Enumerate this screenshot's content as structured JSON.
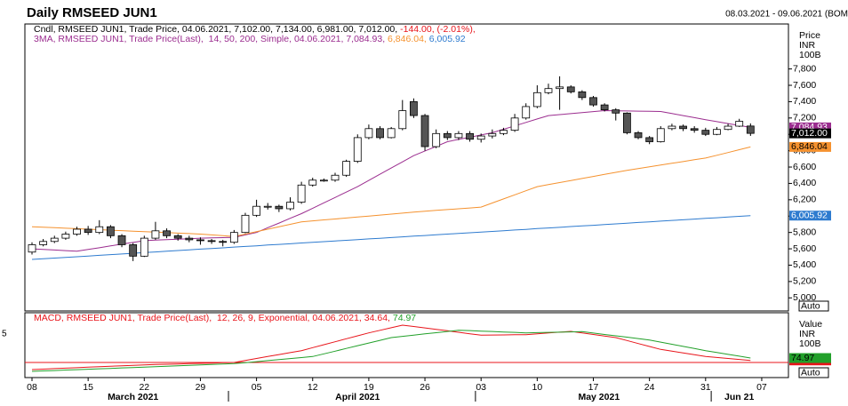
{
  "title": "Daily RMSEED JUN1",
  "date_range": "08.03.2021 - 09.06.2021 (BOM",
  "edge_text": "5",
  "chart_data": [
    {
      "type": "candlestick",
      "legend": [
        [
          {
            "text": "Cndl, RMSEED JUN1, Trade Price, 04.06.2021, 7,102.00, 7,134.00, 6,981.00, 7,012.00, ",
            "color": "#000000"
          },
          {
            "text": "-144.00, (-2.01%),",
            "color": "#e8151b"
          }
        ],
        [
          {
            "text": "3MA, RMSEED JUN1, Trade Price(Last),  14, 50, 200, Simple, 04.06.2021, 7,084.93, ",
            "color": "#9b2d8f"
          },
          {
            "text": "6,846.04, ",
            "color": "#f5922f"
          },
          {
            "text": "6,005.92",
            "color": "#2e7bcf"
          }
        ]
      ],
      "open": [
        5560,
        5650,
        5690,
        5730,
        5780,
        5840,
        5800,
        5870,
        5760,
        5650,
        5510,
        5730,
        5820,
        5760,
        5730,
        5710,
        5700,
        5690,
        5680,
        5800,
        6010,
        6120,
        6120,
        6090,
        6170,
        6380,
        6440,
        6440,
        6500,
        6670,
        6960,
        7070,
        6960,
        7070,
        7400,
        7230,
        6850,
        7010,
        6960,
        7010,
        6940,
        6980,
        7010,
        7050,
        7200,
        7340,
        7510,
        7560,
        7580,
        7520,
        7450,
        7360,
        7300,
        7260,
        7020,
        6960,
        6910,
        7070,
        7100,
        7070,
        7050,
        7000,
        7060,
        7100,
        7102,
        null
      ],
      "high": [
        5680,
        5720,
        5760,
        5810,
        5870,
        5880,
        5950,
        5890,
        5780,
        5670,
        5760,
        5930,
        5850,
        5780,
        5760,
        5740,
        5720,
        5710,
        5830,
        6040,
        6200,
        6160,
        6140,
        6230,
        6420,
        6470,
        6460,
        6530,
        6690,
        7000,
        7120,
        7100,
        7090,
        7420,
        7440,
        7250,
        7060,
        7040,
        7040,
        7040,
        7010,
        7060,
        7080,
        7250,
        7380,
        7600,
        7620,
        7710,
        7600,
        7540,
        7470,
        7380,
        7320,
        7270,
        7040,
        6980,
        7100,
        7130,
        7120,
        7100,
        7080,
        7090,
        7130,
        7190,
        7134,
        null
      ],
      "low": [
        5530,
        5630,
        5670,
        5710,
        5760,
        5770,
        5780,
        5730,
        5620,
        5450,
        5500,
        5710,
        5730,
        5700,
        5680,
        5650,
        5660,
        5630,
        5660,
        5790,
        5990,
        6080,
        6050,
        6070,
        6150,
        6360,
        6420,
        6420,
        6480,
        6650,
        6940,
        6940,
        6950,
        7050,
        7200,
        6800,
        6830,
        6930,
        6930,
        6910,
        6900,
        6950,
        6990,
        7030,
        7180,
        7320,
        7490,
        7300,
        7500,
        7420,
        7340,
        7280,
        7170,
        7000,
        6940,
        6880,
        6900,
        7050,
        7040,
        7020,
        6980,
        6990,
        7050,
        7090,
        6981,
        null
      ],
      "close": [
        5650,
        5690,
        5730,
        5780,
        5840,
        5800,
        5870,
        5760,
        5650,
        5510,
        5730,
        5820,
        5760,
        5730,
        5710,
        5700,
        5690,
        5680,
        5800,
        6010,
        6120,
        6120,
        6090,
        6170,
        6380,
        6440,
        6440,
        6500,
        6670,
        6960,
        7070,
        6960,
        7070,
        7290,
        7230,
        6850,
        7010,
        6960,
        7010,
        6940,
        6980,
        7010,
        7050,
        7200,
        7340,
        7510,
        7560,
        7580,
        7520,
        7450,
        7360,
        7300,
        7260,
        7020,
        6960,
        6910,
        7070,
        7100,
        7070,
        7050,
        7000,
        7060,
        7100,
        7160,
        7012,
        null
      ],
      "close_tag": "7,012.00",
      "up_color": "#ffffff",
      "down_color": "#555555",
      "series": [
        {
          "name": "14",
          "color": "#9b2d8f",
          "tag": "7,084.93",
          "values": [
            5600,
            5592,
            5585,
            5578,
            5570,
            5592,
            5613,
            5635,
            5657,
            5678,
            5700,
            5706,
            5712,
            5718,
            5724,
            5730,
            5733,
            5737,
            5740,
            5770,
            5800,
            5858,
            5915,
            5973,
            6030,
            6096,
            6162,
            6228,
            6294,
            6360,
            6436,
            6512,
            6588,
            6664,
            6740,
            6797,
            6853,
            6910,
            6938,
            6965,
            6993,
            7020,
            7062,
            7104,
            7146,
            7188,
            7230,
            7242,
            7254,
            7266,
            7278,
            7290,
            7288,
            7286,
            7284,
            7282,
            7280,
            7255,
            7230,
            7205,
            7180,
            7156,
            7132,
            7108,
            7084.93,
            null
          ]
        },
        {
          "name": "50",
          "color": "#f5922f",
          "tag": "6,846.04",
          "values": [
            5870,
            5864,
            5858,
            5852,
            5846,
            5840,
            5834,
            5828,
            5822,
            5816,
            5810,
            5804,
            5798,
            5792,
            5786,
            5780,
            5770,
            5760,
            5750,
            5780,
            5810,
            5840,
            5870,
            5900,
            5930,
            5942,
            5954,
            5965,
            5977,
            5989,
            6001,
            6013,
            6025,
            6036,
            6048,
            6060,
            6070,
            6080,
            6090,
            6100,
            6110,
            6160,
            6210,
            6260,
            6310,
            6360,
            6385,
            6410,
            6435,
            6460,
            6485,
            6510,
            6535,
            6560,
            6581,
            6603,
            6624,
            6646,
            6667,
            6689,
            6710,
            6744,
            6778,
            6812,
            6846.04,
            null
          ]
        },
        {
          "name": "200",
          "color": "#2e7bcf",
          "tag": "6,005.92",
          "values": [
            5470,
            5478,
            5487,
            5495,
            5503,
            5512,
            5520,
            5529,
            5537,
            5545,
            5554,
            5562,
            5570,
            5579,
            5587,
            5596,
            5604,
            5612,
            5621,
            5629,
            5637,
            5646,
            5654,
            5662,
            5671,
            5679,
            5688,
            5696,
            5704,
            5713,
            5721,
            5729,
            5738,
            5746,
            5755,
            5763,
            5771,
            5780,
            5788,
            5796,
            5805,
            5813,
            5821,
            5830,
            5838,
            5847,
            5855,
            5863,
            5872,
            5880,
            5888,
            5897,
            5905,
            5914,
            5922,
            5930,
            5939,
            5947,
            5955,
            5964,
            5972,
            5980,
            5989,
            5997,
            6005.92,
            null
          ]
        }
      ],
      "ylim": [
        4840,
        8350
      ],
      "yticks": [
        {
          "value": 5000,
          "label": "5,000"
        },
        {
          "value": 5200,
          "label": "5,200"
        },
        {
          "value": 5400,
          "label": "5,400"
        },
        {
          "value": 5600,
          "label": "5,600"
        },
        {
          "value": 5800,
          "label": "5,800"
        },
        {
          "value": 6000,
          "label": "6,000"
        },
        {
          "value": 6200,
          "label": "6,200"
        },
        {
          "value": 6400,
          "label": "6,400"
        },
        {
          "value": 6600,
          "label": "6,600"
        },
        {
          "value": 6800,
          "label": "6,800"
        },
        {
          "value": 7000,
          "label": "7,000"
        },
        {
          "value": 7200,
          "label": "7,200"
        },
        {
          "value": 7400,
          "label": "7,400"
        },
        {
          "value": 7600,
          "label": "7,600"
        },
        {
          "value": 7800,
          "label": "7,800"
        }
      ],
      "axis_labels": [
        "Price",
        "INR",
        "100B"
      ],
      "scale_button": "Auto"
    },
    {
      "type": "line",
      "legend": [
        [
          {
            "text": "MACD, RMSEED JUN1, Trade Price(Last),  12, 26, 9, Exponential, 04.06.2021, 34.64, ",
            "color": "#e8151b"
          },
          {
            "text": "74.97",
            "color": "#22a02a"
          }
        ]
      ],
      "series": [
        {
          "color": "#e8151b",
          "tag": "34.64",
          "values": [
            -120,
            -112,
            -104,
            -96,
            -88,
            -80,
            -72,
            -64,
            -56,
            -48,
            -40,
            -35,
            -30,
            -25,
            -20,
            -15,
            -10,
            -5,
            0,
            33,
            67,
            100,
            133,
            167,
            200,
            250,
            300,
            350,
            400,
            450,
            500,
            543,
            587,
            630,
            607,
            583,
            560,
            535,
            510,
            485,
            460,
            463,
            465,
            468,
            470,
            484,
            498,
            511,
            525,
            499,
            473,
            446,
            420,
            370,
            320,
            270,
            220,
            190,
            160,
            130,
            100,
            84,
            67,
            51,
            34.64,
            null
          ]
        },
        {
          "color": "#22a02a",
          "tag": "74.97",
          "values": [
            -150,
            -143,
            -136,
            -128,
            -121,
            -114,
            -107,
            -100,
            -92,
            -85,
            -78,
            -71,
            -64,
            -56,
            -49,
            -42,
            -35,
            -27,
            -20,
            -3,
            14,
            31,
            49,
            66,
            83,
            100,
            146,
            191,
            237,
            283,
            329,
            374,
            420,
            441,
            462,
            483,
            503,
            524,
            545,
            538,
            530,
            523,
            515,
            508,
            500,
            504,
            508,
            512,
            516,
            520,
            497,
            473,
            450,
            427,
            403,
            380,
            344,
            308,
            272,
            236,
            200,
            169,
            137,
            106,
            74.97,
            null
          ]
        }
      ],
      "hline": 0,
      "hline_color": "#e8151b",
      "ylim": [
        -255,
        840
      ],
      "axis_labels": [
        "Value",
        "INR",
        "100B"
      ],
      "scale_button": "Auto",
      "categories": [
        "08",
        null,
        null,
        null,
        null,
        "15",
        null,
        null,
        null,
        null,
        "22",
        null,
        null,
        null,
        null,
        "29",
        null,
        null,
        null,
        null,
        "05",
        null,
        null,
        null,
        null,
        "12",
        null,
        null,
        null,
        null,
        "19",
        null,
        null,
        null,
        null,
        "26",
        null,
        null,
        null,
        null,
        "03",
        null,
        null,
        null,
        null,
        "10",
        null,
        null,
        null,
        null,
        "17",
        null,
        null,
        null,
        null,
        "24",
        null,
        null,
        null,
        null,
        "31",
        null,
        null,
        null,
        null,
        "07"
      ],
      "months": [
        {
          "label": "March 2021",
          "start": 0
        },
        {
          "label": "April 2021",
          "start": 18
        },
        {
          "label": "May 2021",
          "start": 40
        },
        {
          "label": "Jun 21",
          "start": 61
        }
      ]
    }
  ]
}
